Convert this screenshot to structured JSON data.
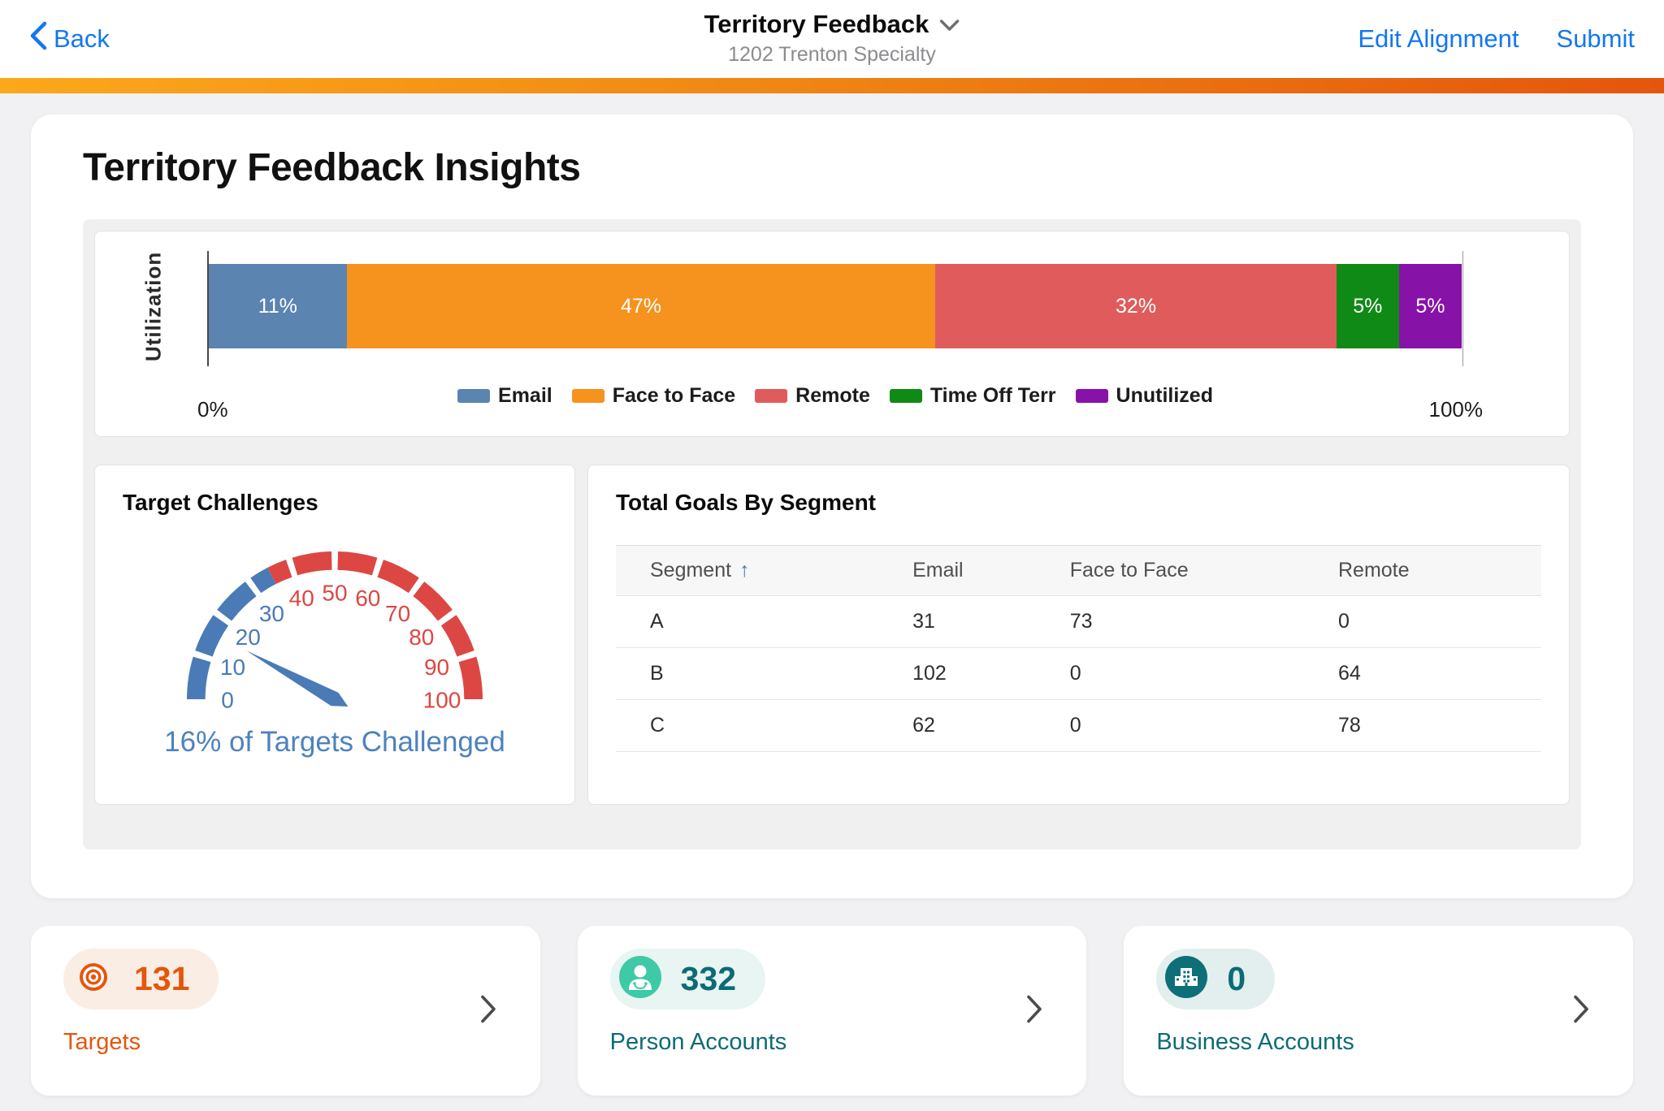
{
  "header": {
    "back_label": "Back",
    "title": "Territory Feedback",
    "subtitle": "1202 Trenton Specialty",
    "edit_alignment_label": "Edit Alignment",
    "submit_label": "Submit",
    "link_color": "#1477F0",
    "accent_gradient": [
      "#FCA81B",
      "#E4560D"
    ]
  },
  "insights": {
    "title": "Territory Feedback Insights"
  },
  "chart_data": [
    {
      "type": "bar",
      "orientation": "horizontal-stacked",
      "ylabel": "Utilization",
      "xlim": [
        0,
        100
      ],
      "x_tick_labels": [
        "0%",
        "100%"
      ],
      "legend_position": "bottom",
      "series": [
        {
          "name": "Email",
          "value": 11,
          "color": "#5B84B1"
        },
        {
          "name": "Face to Face",
          "value": 47,
          "color": "#F6921E"
        },
        {
          "name": "Remote",
          "value": 32,
          "color": "#E05C5C"
        },
        {
          "name": "Time Off Terr",
          "value": 5,
          "color": "#108A16"
        },
        {
          "name": "Unutilized",
          "value": 5,
          "color": "#8712A8"
        }
      ]
    },
    {
      "type": "gauge",
      "title": "Target Challenges",
      "value": 16,
      "min": 0,
      "max": 100,
      "tick_labels": [
        0,
        10,
        20,
        30,
        40,
        50,
        60,
        70,
        80,
        90,
        100
      ],
      "low_range": [
        0,
        35
      ],
      "high_range": [
        35,
        100
      ],
      "low_color": "#4A7BB7",
      "high_color": "#DC4743",
      "needle_color": "#4A7BB7",
      "caption": "16% of Targets Challenged"
    },
    {
      "type": "table",
      "title": "Total Goals By Segment",
      "columns": [
        "Segment",
        "Email",
        "Face to Face",
        "Remote"
      ],
      "sorted_column": "Segment",
      "sort_direction": "asc",
      "sort_icon": "↑",
      "rows": [
        [
          "A",
          "31",
          "73",
          "0"
        ],
        [
          "B",
          "102",
          "0",
          "64"
        ],
        [
          "C",
          "62",
          "0",
          "78"
        ]
      ]
    }
  ],
  "summary_cards": [
    {
      "label": "Targets",
      "count": "131",
      "icon": "target-icon",
      "accent": "#E4560D",
      "pill_bg": "#FAEDE3",
      "icon_bg": "#E4560D"
    },
    {
      "label": "Person Accounts",
      "count": "332",
      "icon": "person-icon",
      "accent": "#0D6B75",
      "pill_bg": "#E8F5F2",
      "icon_bg": "#3EC9A7"
    },
    {
      "label": "Business Accounts",
      "count": "0",
      "icon": "building-icon",
      "accent": "#0D6B75",
      "pill_bg": "#E2EFEE",
      "icon_bg": "#0E6F78"
    }
  ]
}
